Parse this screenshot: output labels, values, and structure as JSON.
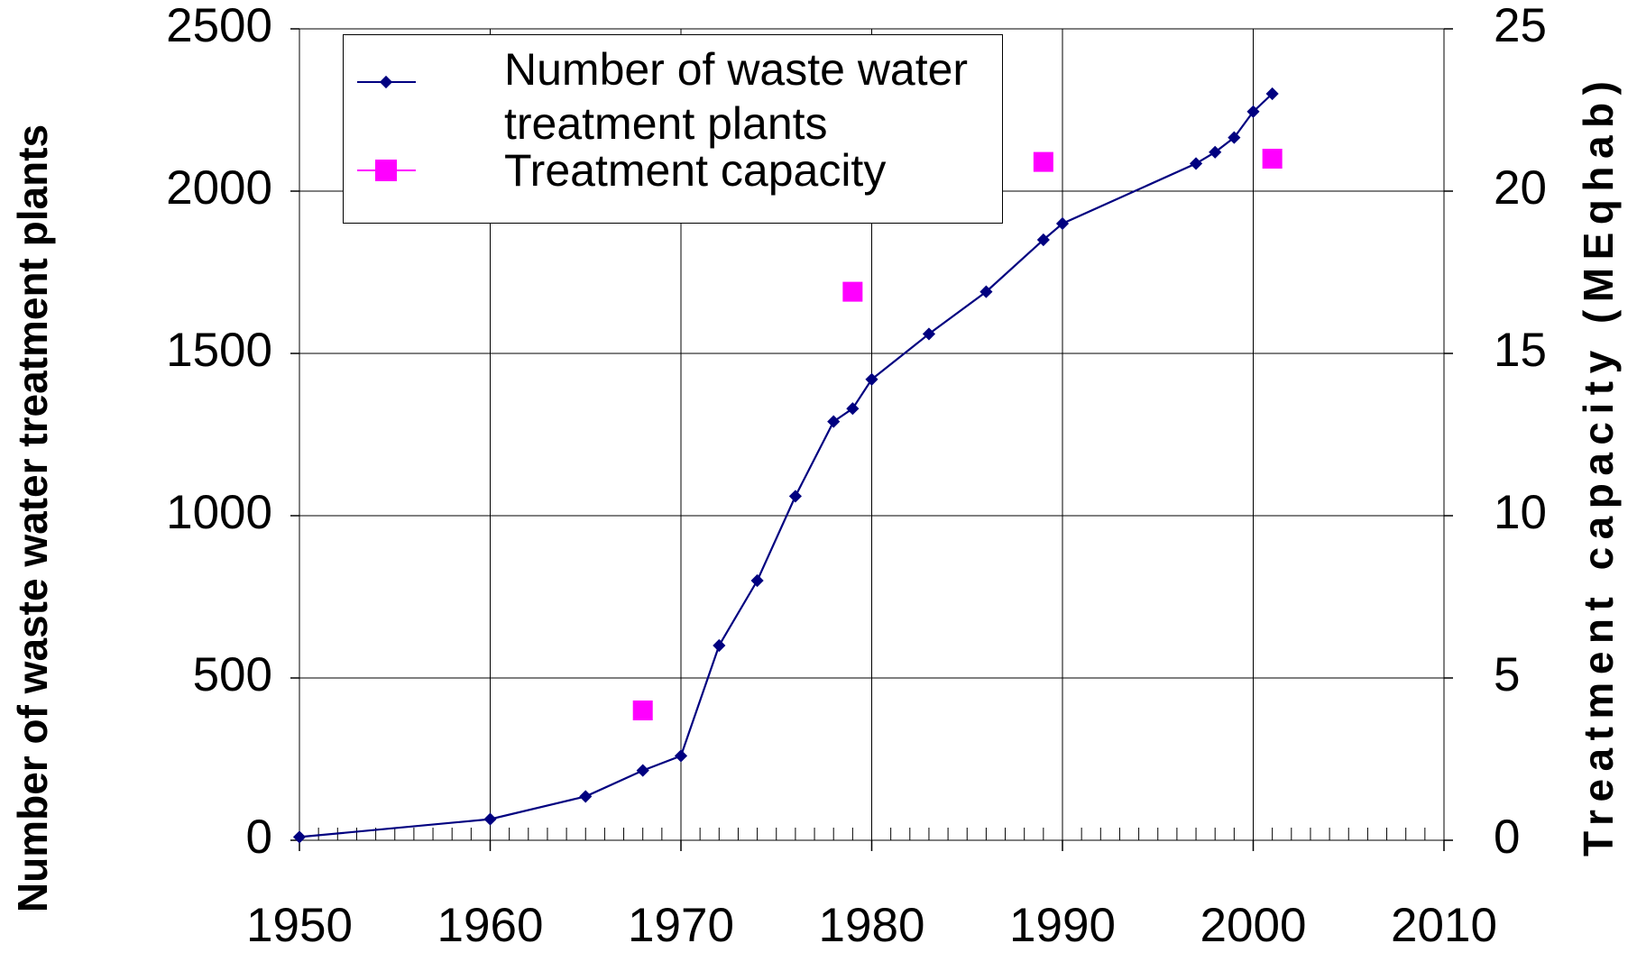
{
  "chart_data": {
    "type": "line",
    "ylabel": "Number of waste water treatment plants",
    "y2label": "Treatment capacity (MEqhab)",
    "xlim": [
      1950,
      2010
    ],
    "xticks": [
      1950,
      1960,
      1970,
      1980,
      1990,
      2000,
      2010
    ],
    "ylim": [
      0,
      2500
    ],
    "yticks": [
      0,
      500,
      1000,
      1500,
      2000,
      2500
    ],
    "y2lim": [
      0,
      25
    ],
    "y2ticks": [
      0,
      5,
      10,
      15,
      20,
      25
    ],
    "grid": true,
    "series": [
      {
        "name": "Number of waste water treatment plants",
        "color": "#000080",
        "marker": "diamond",
        "x": [
          1950,
          1960,
          1965,
          1968,
          1970,
          1972,
          1974,
          1976,
          1978,
          1979,
          1980,
          1983,
          1986,
          1989,
          1990,
          1997,
          1998,
          1999,
          2000,
          2001
        ],
        "values": [
          10,
          65,
          135,
          215,
          260,
          600,
          800,
          1060,
          1290,
          1330,
          1420,
          1560,
          1690,
          1850,
          1900,
          2085,
          2120,
          2165,
          2245,
          2300
        ]
      },
      {
        "name": "Treatment capacity",
        "color": "#ff00ff",
        "marker": "square",
        "axis": "y2",
        "line": false,
        "x": [
          1968,
          1979,
          1989,
          2001
        ],
        "values": [
          4,
          16.9,
          20.9,
          21
        ]
      }
    ]
  }
}
